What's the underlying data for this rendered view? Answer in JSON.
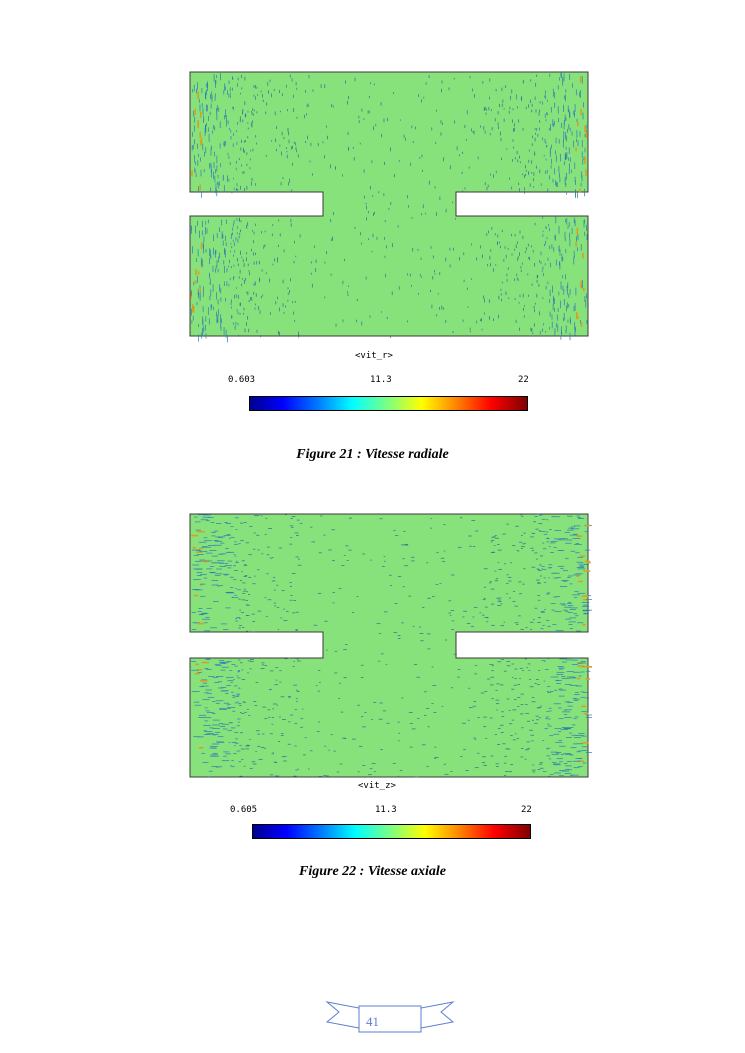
{
  "figures": [
    {
      "variable_label": "<vit_r>",
      "scale_min": "0.603",
      "scale_mid": "11.3",
      "scale_max": "22",
      "caption": "Figure 21 : Vitesse radiale"
    },
    {
      "variable_label": "<vit_z>",
      "scale_min": "0.605",
      "scale_mid": "11.3",
      "scale_max": "22",
      "caption": "Figure 22 : Vitesse axiale"
    }
  ],
  "colors": {
    "field_background": "#88e27c",
    "vector_dense": "#2a7fb0",
    "vector_peak": "#d9a020",
    "page_ribbon": "#5b7fd1"
  },
  "footer": {
    "page_number": "41"
  }
}
